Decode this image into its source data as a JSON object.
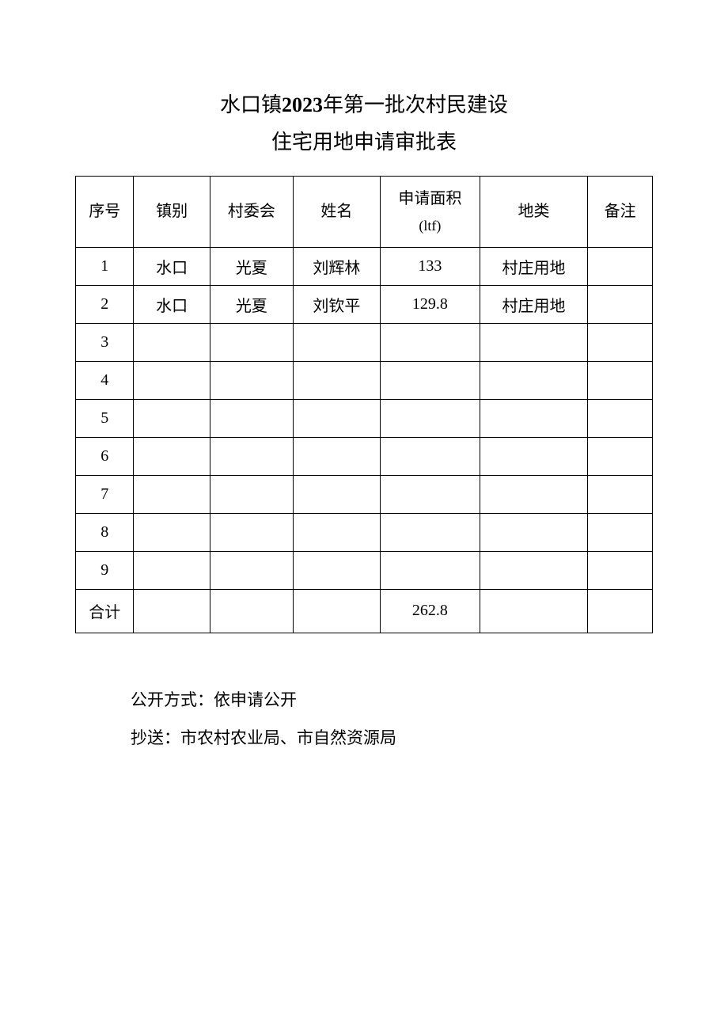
{
  "title": {
    "line1_prefix": "水口镇",
    "line1_year": "2023",
    "line1_suffix": "年第一批次村民建设",
    "line2": "住宅用地申请审批表"
  },
  "table": {
    "columns": [
      "序号",
      "镇别",
      "村委会",
      "姓名",
      "申请面积",
      "(ltf)",
      "地类",
      "备注"
    ],
    "header_area_label": "申请面积",
    "header_area_unit": "(ltf)",
    "rows": [
      {
        "seq": "1",
        "town": "水口",
        "village": "光夏",
        "name": "刘辉林",
        "area": "133",
        "type": "村庄用地",
        "remark": ""
      },
      {
        "seq": "2",
        "town": "水口",
        "village": "光夏",
        "name": "刘钦平",
        "area": "129.8",
        "type": "村庄用地",
        "remark": ""
      },
      {
        "seq": "3",
        "town": "",
        "village": "",
        "name": "",
        "area": "",
        "type": "",
        "remark": ""
      },
      {
        "seq": "4",
        "town": "",
        "village": "",
        "name": "",
        "area": "",
        "type": "",
        "remark": ""
      },
      {
        "seq": "5",
        "town": "",
        "village": "",
        "name": "",
        "area": "",
        "type": "",
        "remark": ""
      },
      {
        "seq": "6",
        "town": "",
        "village": "",
        "name": "",
        "area": "",
        "type": "",
        "remark": ""
      },
      {
        "seq": "7",
        "town": "",
        "village": "",
        "name": "",
        "area": "",
        "type": "",
        "remark": ""
      },
      {
        "seq": "8",
        "town": "",
        "village": "",
        "name": "",
        "area": "",
        "type": "",
        "remark": ""
      },
      {
        "seq": "9",
        "town": "",
        "village": "",
        "name": "",
        "area": "",
        "type": "",
        "remark": ""
      }
    ],
    "total_label": "合计",
    "total_area": "262.8"
  },
  "footer": {
    "line1": "公开方式：依申请公开",
    "line2": "抄送：市农村农业局、市自然资源局"
  },
  "style": {
    "border_color": "#000000",
    "text_color": "#000000",
    "background_color": "#ffffff",
    "title_fontsize": 26,
    "header_fontsize": 20,
    "cell_fontsize": 20,
    "type_fontsize": 14,
    "footer_fontsize": 21
  }
}
